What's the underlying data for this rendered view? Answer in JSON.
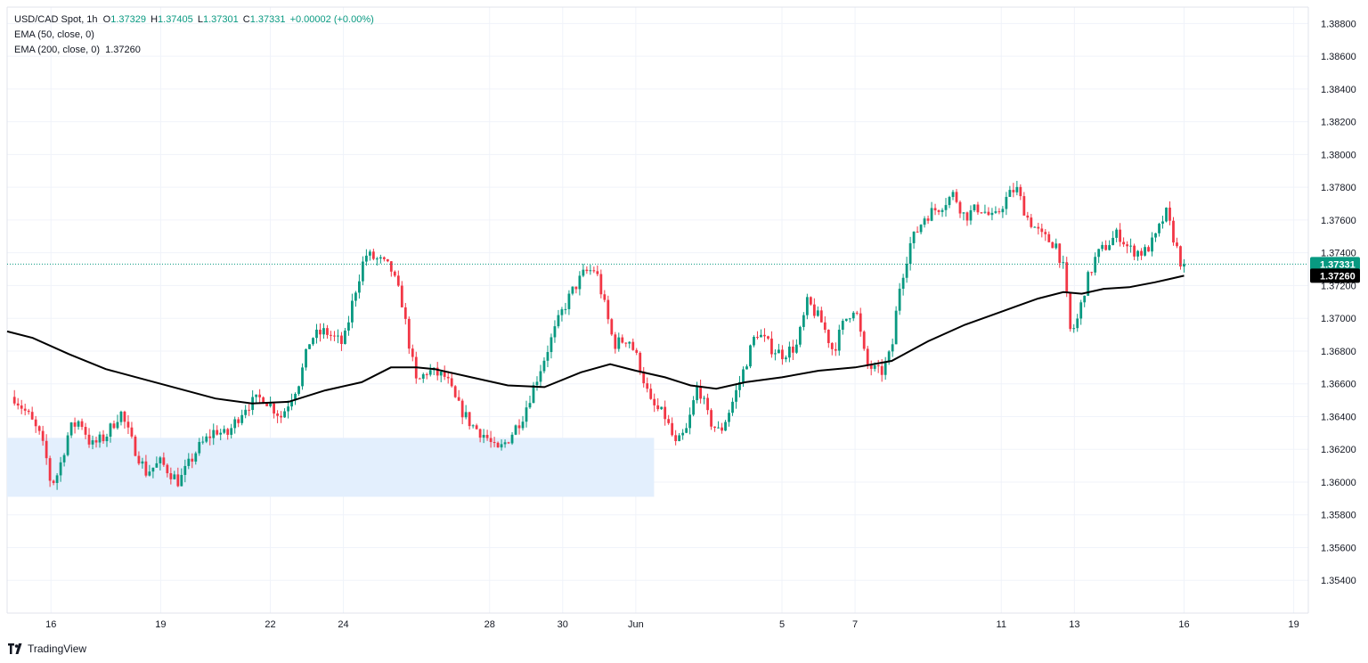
{
  "legend": {
    "symbol": "USD/CAD Spot, 1h",
    "open_label": "O",
    "open": "1.37329",
    "high_label": "H",
    "high": "1.37405",
    "low_label": "L",
    "low": "1.37301",
    "close_label": "C",
    "close": "1.37331",
    "change": "+0.00002 (+0.00%)",
    "ema50": "EMA (50, close, 0)",
    "ema200": "EMA (200, close, 0)",
    "ema200_value": "1.37260"
  },
  "brand": "TradingView",
  "colors": {
    "up": "#089981",
    "down": "#f23645",
    "ema": "#000000",
    "zone": "#e3effd",
    "grid": "#f0f3fa"
  },
  "chart_data": {
    "type": "candlestick",
    "title": "USD/CAD Spot, 1h",
    "ylim": [
      1.352,
      1.389
    ],
    "y_ticks": [
      "1.38800",
      "1.38600",
      "1.38400",
      "1.38200",
      "1.38000",
      "1.37800",
      "1.37600",
      "1.37400",
      "1.37200",
      "1.37000",
      "1.36800",
      "1.36600",
      "1.36400",
      "1.36200",
      "1.36000",
      "1.35800",
      "1.35600",
      "1.35400"
    ],
    "x_ticks": [
      {
        "label": "16",
        "day": 1
      },
      {
        "label": "19",
        "day": 4
      },
      {
        "label": "22",
        "day": 7
      },
      {
        "label": "24",
        "day": 9
      },
      {
        "label": "28",
        "day": 13
      },
      {
        "label": "30",
        "day": 15
      },
      {
        "label": "Jun",
        "day": 17
      },
      {
        "label": "5",
        "day": 21
      },
      {
        "label": "7",
        "day": 23
      },
      {
        "label": "11",
        "day": 27
      },
      {
        "label": "13",
        "day": 29
      },
      {
        "label": "16",
        "day": 32
      },
      {
        "label": "19",
        "day": 35
      }
    ],
    "x_range_days": [
      -0.2,
      35.4
    ],
    "last_price": {
      "label": "1.37331",
      "value": 1.37331
    },
    "ema200_last": {
      "label": "1.37260",
      "value": 1.3726
    },
    "price_path": [
      [
        0.0,
        1.3652
      ],
      [
        0.4,
        1.364
      ],
      [
        0.7,
        1.3628
      ],
      [
        0.9,
        1.3612
      ],
      [
        1.0,
        1.3598
      ],
      [
        1.2,
        1.3606
      ],
      [
        1.5,
        1.3632
      ],
      [
        1.8,
        1.3638
      ],
      [
        2.1,
        1.3622
      ],
      [
        2.5,
        1.3628
      ],
      [
        2.9,
        1.3643
      ],
      [
        3.2,
        1.3625
      ],
      [
        3.6,
        1.3606
      ],
      [
        4.0,
        1.3612
      ],
      [
        4.5,
        1.36
      ],
      [
        5.0,
        1.362
      ],
      [
        5.5,
        1.3632
      ],
      [
        5.8,
        1.3628
      ],
      [
        6.3,
        1.3646
      ],
      [
        6.8,
        1.3652
      ],
      [
        7.3,
        1.364
      ],
      [
        7.8,
        1.3662
      ],
      [
        8.1,
        1.3688
      ],
      [
        8.5,
        1.3692
      ],
      [
        9.0,
        1.3684
      ],
      [
        9.3,
        1.3715
      ],
      [
        9.6,
        1.3739
      ],
      [
        10.0,
        1.3735
      ],
      [
        10.3,
        1.373
      ],
      [
        10.6,
        1.371
      ],
      [
        10.8,
        1.3684
      ],
      [
        11.0,
        1.366
      ],
      [
        11.3,
        1.3668
      ],
      [
        11.8,
        1.3664
      ],
      [
        12.1,
        1.3648
      ],
      [
        12.5,
        1.3635
      ],
      [
        12.9,
        1.3628
      ],
      [
        13.2,
        1.3618
      ],
      [
        13.5,
        1.3626
      ],
      [
        13.9,
        1.364
      ],
      [
        14.2,
        1.3658
      ],
      [
        14.6,
        1.3682
      ],
      [
        15.0,
        1.3705
      ],
      [
        15.3,
        1.3718
      ],
      [
        15.6,
        1.3728
      ],
      [
        15.9,
        1.373
      ],
      [
        16.1,
        1.3712
      ],
      [
        16.4,
        1.3684
      ],
      [
        16.8,
        1.3688
      ],
      [
        17.1,
        1.3672
      ],
      [
        17.4,
        1.3648
      ],
      [
        17.8,
        1.364
      ],
      [
        18.1,
        1.3622
      ],
      [
        18.4,
        1.3632
      ],
      [
        18.7,
        1.366
      ],
      [
        19.0,
        1.3638
      ],
      [
        19.3,
        1.363
      ],
      [
        19.6,
        1.3646
      ],
      [
        19.9,
        1.3665
      ],
      [
        20.3,
        1.3692
      ],
      [
        20.7,
        1.3682
      ],
      [
        21.0,
        1.3678
      ],
      [
        21.4,
        1.3683
      ],
      [
        21.7,
        1.371
      ],
      [
        22.1,
        1.3697
      ],
      [
        22.4,
        1.368
      ],
      [
        22.7,
        1.3698
      ],
      [
        23.0,
        1.3708
      ],
      [
        23.3,
        1.3672
      ],
      [
        23.7,
        1.3666
      ],
      [
        24.0,
        1.368
      ],
      [
        24.2,
        1.3718
      ],
      [
        24.5,
        1.3745
      ],
      [
        24.9,
        1.3762
      ],
      [
        25.3,
        1.3768
      ],
      [
        25.7,
        1.3776
      ],
      [
        26.0,
        1.3762
      ],
      [
        26.4,
        1.3768
      ],
      [
        26.8,
        1.376
      ],
      [
        27.1,
        1.3772
      ],
      [
        27.4,
        1.378
      ],
      [
        27.7,
        1.3762
      ],
      [
        28.1,
        1.375
      ],
      [
        28.5,
        1.3745
      ],
      [
        28.7,
        1.373
      ],
      [
        28.9,
        1.369
      ],
      [
        29.1,
        1.37
      ],
      [
        29.3,
        1.372
      ],
      [
        29.6,
        1.3738
      ],
      [
        29.9,
        1.3745
      ],
      [
        30.2,
        1.3752
      ],
      [
        30.5,
        1.3742
      ],
      [
        30.9,
        1.374
      ],
      [
        31.2,
        1.3748
      ],
      [
        31.5,
        1.3765
      ],
      [
        31.7,
        1.375
      ],
      [
        31.9,
        1.3735
      ],
      [
        32.0,
        1.3733
      ]
    ],
    "ema200_path": [
      [
        -0.2,
        1.3692
      ],
      [
        0.5,
        1.3688
      ],
      [
        1.5,
        1.3678
      ],
      [
        2.5,
        1.3669
      ],
      [
        3.5,
        1.3663
      ],
      [
        4.5,
        1.3657
      ],
      [
        5.5,
        1.3651
      ],
      [
        6.5,
        1.3648
      ],
      [
        7.5,
        1.3649
      ],
      [
        8.5,
        1.3656
      ],
      [
        9.5,
        1.3661
      ],
      [
        10.3,
        1.367
      ],
      [
        11.0,
        1.367
      ],
      [
        11.5,
        1.3669
      ],
      [
        12.5,
        1.3664
      ],
      [
        13.5,
        1.3659
      ],
      [
        14.5,
        1.3658
      ],
      [
        15.5,
        1.3667
      ],
      [
        16.3,
        1.3672
      ],
      [
        17.0,
        1.3668
      ],
      [
        17.8,
        1.3664
      ],
      [
        18.5,
        1.3659
      ],
      [
        19.2,
        1.3657
      ],
      [
        20.0,
        1.3661
      ],
      [
        21.0,
        1.3664
      ],
      [
        22.0,
        1.3668
      ],
      [
        23.0,
        1.367
      ],
      [
        24.0,
        1.3674
      ],
      [
        25.0,
        1.3686
      ],
      [
        26.0,
        1.3696
      ],
      [
        27.0,
        1.3704
      ],
      [
        28.0,
        1.3712
      ],
      [
        28.7,
        1.3716
      ],
      [
        29.2,
        1.3715
      ],
      [
        29.8,
        1.3718
      ],
      [
        30.5,
        1.3719
      ],
      [
        31.2,
        1.3722
      ],
      [
        31.6,
        1.3724
      ],
      [
        32.0,
        1.3726
      ]
    ],
    "support_zone": {
      "y_range": [
        1.3591,
        1.3627
      ],
      "x_range_days": [
        -0.2,
        17.5
      ]
    },
    "candle_count": 330,
    "seed": 7,
    "grid": true
  }
}
